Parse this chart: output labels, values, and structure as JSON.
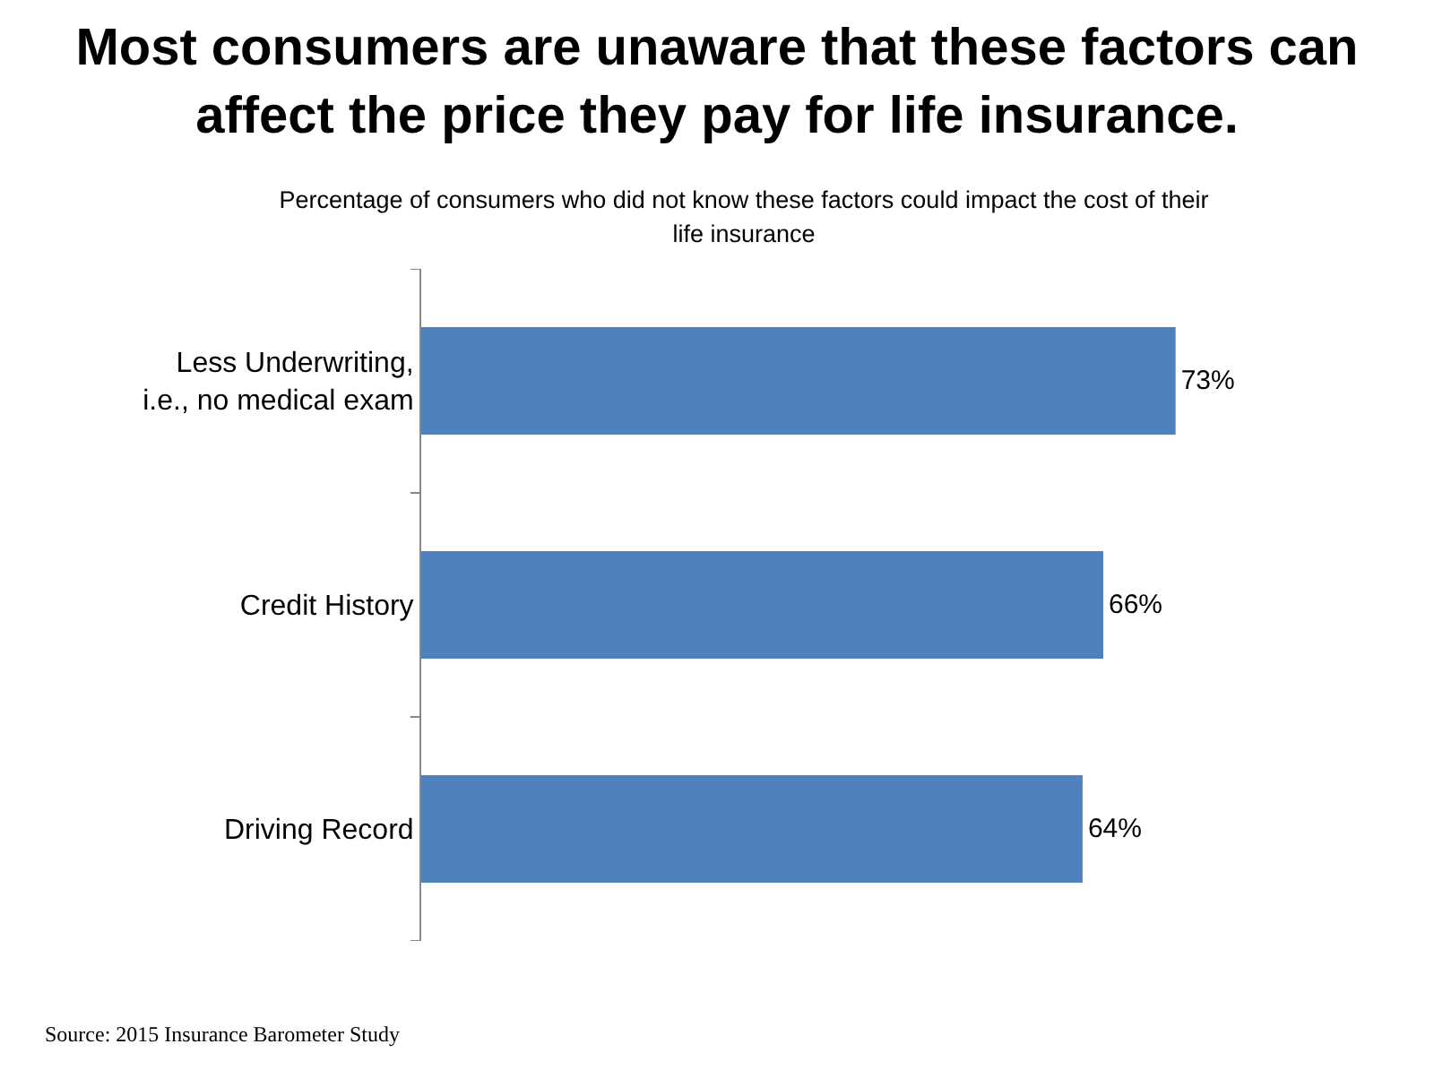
{
  "chart_data": {
    "type": "bar",
    "orientation": "horizontal",
    "title": "Most consumers are unaware that these factors can affect the price they pay for life insurance.",
    "subtitle": "Percentage of consumers who did not know these factors could impact the cost of their life insurance",
    "categories": [
      "Less Underwriting, i.e., no medical exam",
      "Credit History",
      "Driving Record"
    ],
    "values": [
      73,
      66,
      64
    ],
    "value_labels": [
      "73%",
      "66%",
      "64%"
    ],
    "color": "#4f81bd",
    "grid": false,
    "annotations": [
      "Source: 2015 Insurance Barometer Study"
    ]
  }
}
